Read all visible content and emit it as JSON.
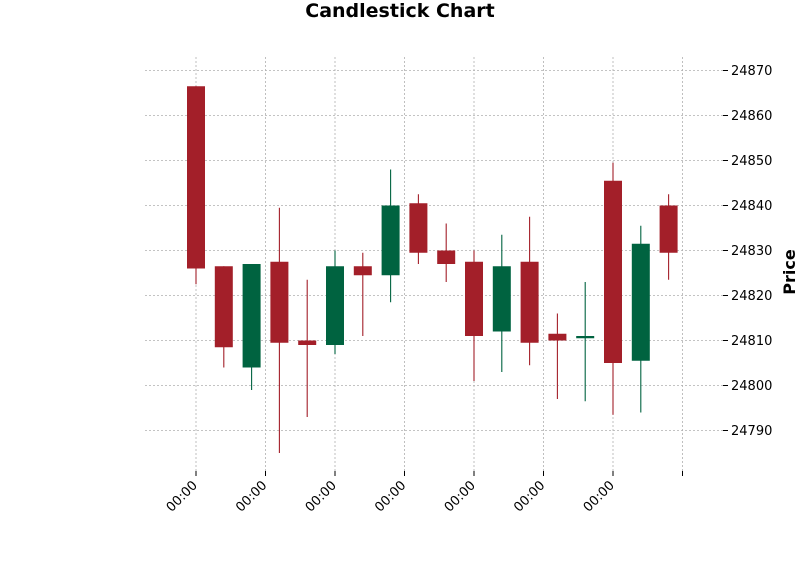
{
  "chart_data": {
    "type": "candlestick",
    "title": "Candlestick Chart",
    "xlabel": "",
    "ylabel": "Price",
    "ylim": [
      24781,
      24873
    ],
    "yticks": [
      24790,
      24800,
      24810,
      24820,
      24830,
      24840,
      24850,
      24860,
      24870
    ],
    "xtick_labels": [
      "00:00",
      "00:00",
      "00:00",
      "00:00",
      "00:00",
      "00:00",
      "00:00",
      ""
    ],
    "xtick_positions": [
      0,
      2.5,
      5,
      7.5,
      10,
      12.5,
      15,
      17.5
    ],
    "grid": true,
    "up_color": "#006340",
    "down_color": "#a31f29",
    "candles": [
      {
        "open": 24866.5,
        "high": 24866.5,
        "low": 24822.5,
        "close": 24826.0
      },
      {
        "open": 24826.5,
        "high": 24826.5,
        "low": 24804.0,
        "close": 24808.5
      },
      {
        "open": 24804.0,
        "high": 24827.0,
        "low": 24799.0,
        "close": 24827.0
      },
      {
        "open": 24827.5,
        "high": 24839.5,
        "low": 24785.0,
        "close": 24809.5
      },
      {
        "open": 24810.0,
        "high": 24823.5,
        "low": 24793.0,
        "close": 24809.0
      },
      {
        "open": 24809.0,
        "high": 24830.0,
        "low": 24807.0,
        "close": 24826.5
      },
      {
        "open": 24826.5,
        "high": 24829.5,
        "low": 24811.0,
        "close": 24824.5
      },
      {
        "open": 24824.5,
        "high": 24848.0,
        "low": 24818.5,
        "close": 24840.0
      },
      {
        "open": 24840.5,
        "high": 24842.5,
        "low": 24827.0,
        "close": 24829.5
      },
      {
        "open": 24830.0,
        "high": 24836.0,
        "low": 24823.0,
        "close": 24827.0
      },
      {
        "open": 24827.5,
        "high": 24830.0,
        "low": 24801.0,
        "close": 24811.0
      },
      {
        "open": 24812.0,
        "high": 24833.5,
        "low": 24803.0,
        "close": 24826.5
      },
      {
        "open": 24827.5,
        "high": 24837.5,
        "low": 24804.5,
        "close": 24809.5
      },
      {
        "open": 24811.5,
        "high": 24816.0,
        "low": 24797.0,
        "close": 24810.0
      },
      {
        "open": 24810.5,
        "high": 24823.0,
        "low": 24796.5,
        "close": 24811.0
      },
      {
        "open": 24845.5,
        "high": 24849.5,
        "low": 24793.5,
        "close": 24805.0
      },
      {
        "open": 24805.5,
        "high": 24835.5,
        "low": 24794.0,
        "close": 24831.5
      },
      {
        "open": 24840.0,
        "high": 24842.5,
        "low": 24823.5,
        "close": 24829.5
      }
    ]
  }
}
